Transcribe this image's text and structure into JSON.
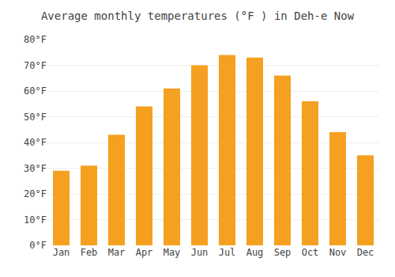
{
  "chart_data": {
    "type": "bar",
    "title": "Average monthly temperatures (°F ) in Deh-e Now",
    "categories": [
      "Jan",
      "Feb",
      "Mar",
      "Apr",
      "May",
      "Jun",
      "Jul",
      "Aug",
      "Sep",
      "Oct",
      "Nov",
      "Dec"
    ],
    "values": [
      29,
      31,
      43,
      54,
      61,
      70,
      74,
      73,
      66,
      56,
      44,
      35
    ],
    "color": "#F5A020",
    "ylim": [
      0,
      80
    ],
    "yticks": [
      {
        "value": 0,
        "label": "0°F"
      },
      {
        "value": 10,
        "label": "10°F"
      },
      {
        "value": 20,
        "label": "20°F"
      },
      {
        "value": 30,
        "label": "30°F"
      },
      {
        "value": 40,
        "label": "40°F"
      },
      {
        "value": 50,
        "label": "50°F"
      },
      {
        "value": 60,
        "label": "60°F"
      },
      {
        "value": 70,
        "label": "70°F"
      },
      {
        "value": 80,
        "label": "80°F"
      }
    ],
    "grid": true
  }
}
